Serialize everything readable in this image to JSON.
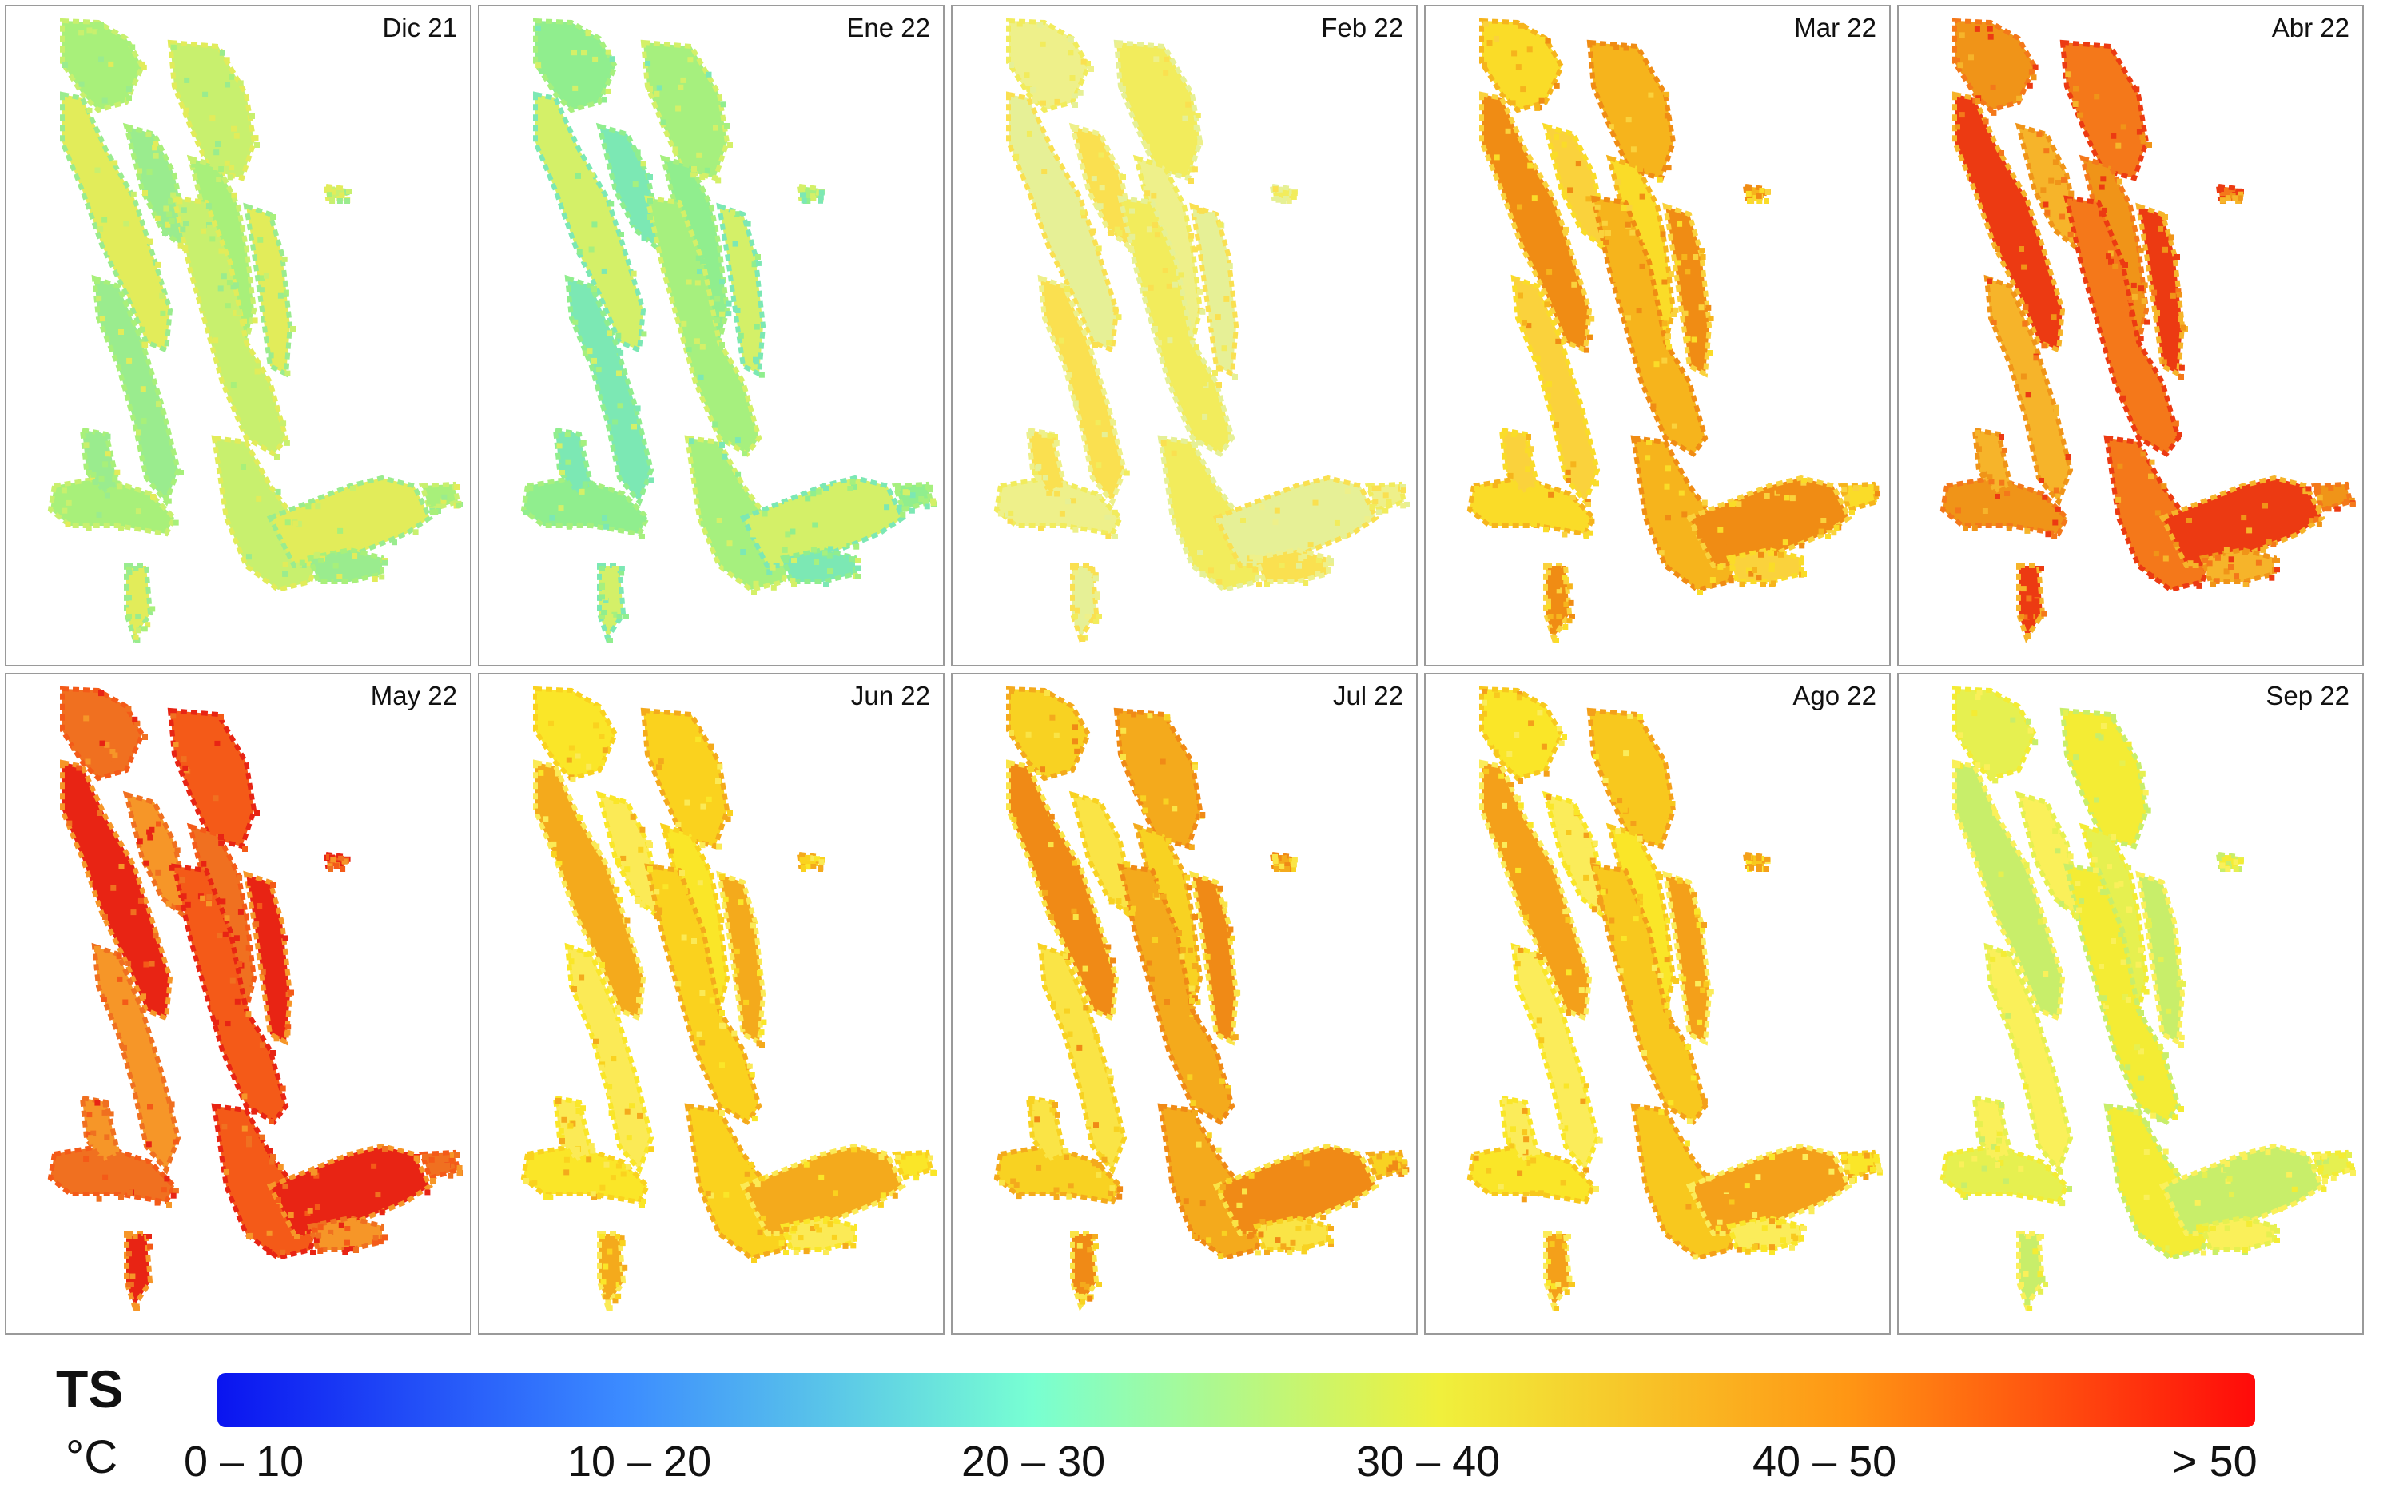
{
  "legend": {
    "title": "TS",
    "unit": "°C",
    "classes": [
      "0 – 10",
      "10 – 20",
      "20 – 30",
      "30 – 40",
      "40 – 50",
      "> 50"
    ],
    "gradient_colors": [
      "#0a14f0",
      "#3c8cff",
      "#78ffd2",
      "#f0f03c",
      "#ff9614",
      "#ff0a0a"
    ]
  },
  "maps": [
    {
      "label": "Dic 21",
      "palette": [
        "#a8f07a",
        "#c8f06e",
        "#e2ec5a",
        "#9aec8e"
      ]
    },
    {
      "label": "Ene 22",
      "palette": [
        "#90ee8e",
        "#a6f07e",
        "#d4f068",
        "#7ce8b4"
      ]
    },
    {
      "label": "Feb 22",
      "palette": [
        "#eef08a",
        "#f2ec5c",
        "#e6f096",
        "#fae050"
      ]
    },
    {
      "label": "Mar 22",
      "palette": [
        "#fadc28",
        "#f6b41c",
        "#f08c14",
        "#fad23c"
      ]
    },
    {
      "label": "Abr 22",
      "palette": [
        "#f09418",
        "#f4781a",
        "#ec3a12",
        "#f6b42a"
      ]
    },
    {
      "label": "May 22",
      "palette": [
        "#f07020",
        "#f45a18",
        "#e82414",
        "#f69628"
      ]
    },
    {
      "label": "Jun 22",
      "palette": [
        "#fae628",
        "#fad21e",
        "#f4aa1c",
        "#fbea56"
      ]
    },
    {
      "label": "Jul 22",
      "palette": [
        "#f8d222",
        "#f4aa1c",
        "#f08a16",
        "#fae446"
      ]
    },
    {
      "label": "Ago 22",
      "palette": [
        "#fae628",
        "#f8c81e",
        "#f4a01a",
        "#fbec5a"
      ]
    },
    {
      "label": "Sep 22",
      "palette": [
        "#e6f050",
        "#f4ec34",
        "#c8ee6a",
        "#faf05a"
      ]
    }
  ]
}
